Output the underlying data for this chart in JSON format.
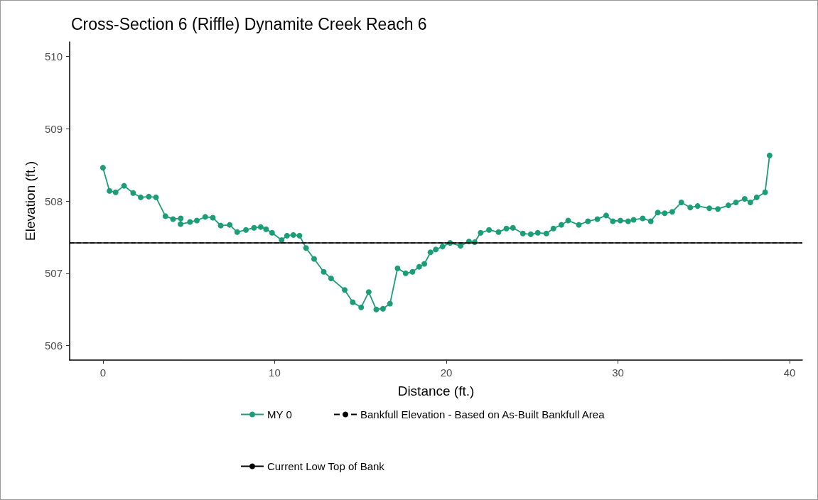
{
  "chart_data": {
    "type": "line",
    "title": "Cross-Section 6 (Riffle) Dynamite Creek Reach 6",
    "xlabel": "Distance (ft.)",
    "ylabel": "Elevation (ft.)",
    "series": [
      {
        "name": "MY 0",
        "color": "#1b9e77",
        "x": [
          0,
          0.38,
          0.74,
          1.23,
          1.76,
          2.2,
          2.67,
          3.09,
          3.64,
          4.08,
          4.53,
          4.52,
          5.07,
          5.47,
          5.96,
          6.4,
          6.86,
          7.38,
          7.82,
          8.33,
          8.8,
          9.19,
          9.5,
          9.85,
          10.41,
          10.72,
          11.09,
          11.45,
          11.83,
          12.3,
          12.86,
          13.29,
          14.08,
          14.55,
          15.04,
          15.48,
          15.92,
          16.31,
          16.72,
          17.16,
          17.63,
          18.03,
          18.42,
          18.72,
          19.08,
          19.39,
          19.78,
          20.22,
          20.83,
          21.32,
          21.65,
          22.0,
          22.49,
          23.04,
          23.5,
          23.88,
          24.46,
          24.92,
          25.33,
          25.83,
          26.24,
          26.7,
          27.1,
          27.72,
          28.25,
          28.8,
          29.31,
          29.7,
          30.14,
          30.59,
          30.91,
          31.44,
          31.91,
          32.32,
          32.72,
          33.16,
          33.69,
          34.21,
          34.64,
          35.32,
          35.82,
          36.43,
          36.87,
          37.38,
          37.71,
          38.08,
          38.57,
          38.83
        ],
        "values": [
          508.46,
          508.14,
          508.12,
          508.21,
          508.11,
          508.05,
          508.06,
          508.05,
          507.79,
          507.75,
          507.76,
          507.68,
          507.71,
          507.73,
          507.78,
          507.77,
          507.66,
          507.67,
          507.57,
          507.6,
          507.63,
          507.64,
          507.61,
          507.56,
          507.46,
          507.52,
          507.53,
          507.52,
          507.35,
          507.2,
          507.02,
          506.93,
          506.77,
          506.6,
          506.53,
          506.74,
          506.5,
          506.51,
          506.58,
          507.07,
          507.0,
          507.02,
          507.09,
          507.13,
          507.29,
          507.33,
          507.37,
          507.42,
          507.38,
          507.44,
          507.43,
          507.56,
          507.6,
          507.57,
          507.62,
          507.63,
          507.55,
          507.54,
          507.56,
          507.55,
          507.62,
          507.67,
          507.73,
          507.67,
          507.72,
          507.75,
          507.8,
          507.72,
          507.73,
          507.72,
          507.74,
          507.76,
          507.72,
          507.84,
          507.83,
          507.85,
          507.98,
          507.91,
          507.93,
          507.9,
          507.89,
          507.94,
          507.98,
          508.03,
          507.98,
          508.05,
          508.12,
          508.63
        ]
      }
    ],
    "ref_lines": [
      {
        "axis": "y",
        "value": 507.42,
        "label": "Current Low Top of Bank",
        "color": "#000000",
        "line_style": "solid"
      },
      {
        "axis": "y",
        "value": 507.42,
        "label": "Bankfull Elevation - Based on As-Built Bankfull Area",
        "color": "#000000",
        "line_style": "dashed"
      }
    ],
    "marker": "circle",
    "xlim": [
      -1.94,
      40.74
    ],
    "xticks": [
      0,
      10,
      20,
      30,
      40
    ],
    "ylim": [
      505.8,
      510.2
    ],
    "yticks": [
      506,
      507,
      508,
      509,
      510
    ],
    "grid": false,
    "legend": "bottom"
  }
}
